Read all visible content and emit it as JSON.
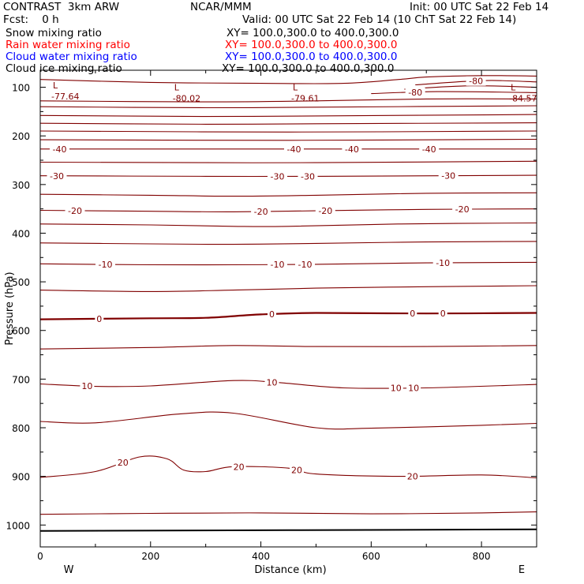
{
  "header": {
    "model": "CONTRAST  3km ARW",
    "org": "NCAR/MMM",
    "init": "Init: 00 UTC Sat 22 Feb 14",
    "fcst": "Fcst:    0 h",
    "valid": "Valid: 00 UTC Sat 22 Feb 14 (10 ChT Sat 22 Feb 14)"
  },
  "fields": [
    {
      "name": "Snow mixing ratio",
      "xy": "XY= 100.0,300.0 to 400.0,300.0",
      "color": "#000000"
    },
    {
      "name": "Rain water mixing ratio",
      "xy": "XY= 100.0,300.0 to 400.0,300.0",
      "color": "#ff0000"
    },
    {
      "name": "Cloud water mixing ratio",
      "xy": "XY= 100.0,300.0 to 400.0,300.0",
      "color": "#0000ff"
    },
    {
      "name": "Cloud ice mixing ratio",
      "xy": "XY= 100.0,300.0 to 400.0,300.0",
      "color": "#000000"
    }
  ],
  "chart_data": {
    "type": "line",
    "subtype": "vertical cross-section contour plot",
    "xlabel": "Distance (km)",
    "ylabel": "Pressure (hPa)",
    "xlim": [
      0,
      900
    ],
    "ylim": [
      1045,
      65
    ],
    "y_inverted": true,
    "x_ticks": [
      0,
      200,
      400,
      600,
      800
    ],
    "y_ticks": [
      100,
      200,
      300,
      400,
      500,
      600,
      700,
      800,
      900,
      1000
    ],
    "end_labels": {
      "left": "W",
      "right": "E"
    },
    "contour_color": "#800000",
    "ground_color": "#000000",
    "grid": false,
    "lows": [
      {
        "x": 20,
        "p": 109,
        "label": "-77.64"
      },
      {
        "x": 240,
        "p": 113,
        "label": "-80.02"
      },
      {
        "x": 455,
        "p": 113,
        "label": "-79.61"
      },
      {
        "x": 850,
        "p": 113,
        "label": "-84.57"
      }
    ],
    "contours": [
      {
        "points": [
          [
            0,
            84
          ],
          [
            200,
            90
          ],
          [
            400,
            92
          ],
          [
            550,
            92
          ],
          [
            650,
            84
          ],
          [
            700,
            79
          ],
          [
            800,
            76
          ],
          [
            900,
            77
          ]
        ]
      },
      {
        "points": [
          [
            680,
            95
          ],
          [
            770,
            88
          ],
          [
            820,
            86
          ],
          [
            900,
            89
          ]
        ],
        "labels": [
          {
            "x": 790,
            "text": "-80"
          }
        ]
      },
      {
        "points": [
          [
            660,
            104
          ],
          [
            780,
            97
          ],
          [
            900,
            100
          ]
        ]
      },
      {
        "points": [
          [
            600,
            113
          ],
          [
            720,
            109
          ],
          [
            900,
            111
          ]
        ],
        "labels": [
          {
            "x": 680,
            "text": "-80"
          }
        ]
      },
      {
        "points": [
          [
            0,
            128
          ],
          [
            300,
            130
          ],
          [
            500,
            128
          ],
          [
            700,
            124
          ],
          [
            900,
            124
          ]
        ]
      },
      {
        "points": [
          [
            0,
            140
          ],
          [
            300,
            142
          ],
          [
            500,
            141
          ],
          [
            900,
            138
          ]
        ]
      },
      {
        "points": [
          [
            0,
            158
          ],
          [
            300,
            160
          ],
          [
            500,
            159
          ],
          [
            900,
            156
          ]
        ]
      },
      {
        "points": [
          [
            0,
            174
          ],
          [
            300,
            176
          ],
          [
            500,
            175
          ],
          [
            900,
            173
          ]
        ]
      },
      {
        "points": [
          [
            0,
            190
          ],
          [
            450,
            192
          ],
          [
            900,
            190
          ]
        ]
      },
      {
        "points": [
          [
            0,
            208
          ],
          [
            450,
            209
          ],
          [
            900,
            207
          ]
        ]
      },
      {
        "points": [
          [
            0,
            227
          ],
          [
            300,
            227
          ],
          [
            500,
            227
          ],
          [
            900,
            227
          ]
        ],
        "labels": [
          {
            "x": 35,
            "text": "-40"
          },
          {
            "x": 460,
            "text": "-40"
          },
          {
            "x": 565,
            "text": "-40"
          },
          {
            "x": 705,
            "text": "-40"
          }
        ]
      },
      {
        "points": [
          [
            0,
            254
          ],
          [
            300,
            255
          ],
          [
            500,
            255
          ],
          [
            900,
            252
          ]
        ]
      },
      {
        "points": [
          [
            0,
            282
          ],
          [
            300,
            283
          ],
          [
            500,
            283
          ],
          [
            900,
            281
          ]
        ],
        "labels": [
          {
            "x": 30,
            "text": "-30"
          },
          {
            "x": 430,
            "text": "-30"
          },
          {
            "x": 485,
            "text": "-30"
          },
          {
            "x": 740,
            "text": "-30"
          }
        ]
      },
      {
        "points": [
          [
            0,
            320
          ],
          [
            200,
            322
          ],
          [
            350,
            324
          ],
          [
            500,
            322
          ],
          [
            700,
            318
          ],
          [
            900,
            317
          ]
        ]
      },
      {
        "points": [
          [
            0,
            353
          ],
          [
            200,
            355
          ],
          [
            350,
            356
          ],
          [
            500,
            354
          ],
          [
            700,
            351
          ],
          [
            900,
            350
          ]
        ],
        "labels": [
          {
            "x": 63,
            "text": "-20"
          },
          {
            "x": 400,
            "text": "-20"
          },
          {
            "x": 517,
            "text": "-20"
          },
          {
            "x": 765,
            "text": "-20"
          }
        ]
      },
      {
        "points": [
          [
            0,
            381
          ],
          [
            200,
            383
          ],
          [
            350,
            386
          ],
          [
            450,
            386
          ],
          [
            650,
            381
          ],
          [
            900,
            379
          ]
        ]
      },
      {
        "points": [
          [
            0,
            420
          ],
          [
            200,
            422
          ],
          [
            350,
            423
          ],
          [
            500,
            421
          ],
          [
            700,
            418
          ],
          [
            900,
            417
          ]
        ]
      },
      {
        "points": [
          [
            0,
            463
          ],
          [
            200,
            465
          ],
          [
            350,
            465
          ],
          [
            500,
            464
          ],
          [
            700,
            461
          ],
          [
            900,
            460
          ]
        ],
        "labels": [
          {
            "x": 118,
            "text": "-10"
          },
          {
            "x": 430,
            "text": "-10"
          },
          {
            "x": 480,
            "text": "-10"
          },
          {
            "x": 730,
            "text": "-10"
          }
        ]
      },
      {
        "points": [
          [
            0,
            517
          ],
          [
            200,
            520
          ],
          [
            350,
            517
          ],
          [
            500,
            513
          ],
          [
            700,
            510
          ],
          [
            900,
            508
          ]
        ]
      },
      {
        "points": [
          [
            0,
            577
          ],
          [
            200,
            575
          ],
          [
            300,
            574
          ],
          [
            400,
            567
          ],
          [
            500,
            564
          ],
          [
            700,
            565
          ],
          [
            900,
            564
          ]
        ],
        "labels": [
          {
            "x": 107,
            "text": "0"
          },
          {
            "x": 420,
            "text": "0"
          },
          {
            "x": 675,
            "text": "0"
          },
          {
            "x": 730,
            "text": "0"
          }
        ],
        "bold": true
      },
      {
        "points": [
          [
            0,
            638
          ],
          [
            200,
            635
          ],
          [
            350,
            631
          ],
          [
            500,
            633
          ],
          [
            700,
            633
          ],
          [
            900,
            631
          ]
        ]
      },
      {
        "points": [
          [
            0,
            710
          ],
          [
            100,
            715
          ],
          [
            200,
            714
          ],
          [
            350,
            703
          ],
          [
            430,
            707
          ],
          [
            550,
            718
          ],
          [
            700,
            718
          ],
          [
            900,
            711
          ]
        ],
        "labels": [
          {
            "x": 85,
            "text": "10"
          },
          {
            "x": 420,
            "text": "10"
          },
          {
            "x": 645,
            "text": "10"
          },
          {
            "x": 677,
            "text": "10"
          }
        ]
      },
      {
        "points": [
          [
            0,
            787
          ],
          [
            100,
            790
          ],
          [
            250,
            772
          ],
          [
            350,
            770
          ],
          [
            500,
            800
          ],
          [
            600,
            801
          ],
          [
            800,
            795
          ],
          [
            900,
            791
          ]
        ]
      },
      {
        "points": [
          [
            0,
            902
          ],
          [
            100,
            890
          ],
          [
            180,
            860
          ],
          [
            230,
            864
          ],
          [
            260,
            887
          ],
          [
            300,
            890
          ],
          [
            350,
            880
          ],
          [
            450,
            883
          ],
          [
            500,
            895
          ],
          [
            650,
            900
          ],
          [
            800,
            897
          ],
          [
            900,
            903
          ]
        ],
        "labels": [
          {
            "x": 150,
            "text": "20"
          },
          {
            "x": 360,
            "text": "20"
          },
          {
            "x": 465,
            "text": "20"
          },
          {
            "x": 675,
            "text": "20"
          }
        ]
      },
      {
        "points": [
          [
            0,
            978
          ],
          [
            200,
            976
          ],
          [
            400,
            975
          ],
          [
            600,
            977
          ],
          [
            800,
            975
          ],
          [
            900,
            973
          ]
        ]
      }
    ],
    "ground": {
      "points": [
        [
          0,
          1012
        ],
        [
          900,
          1009
        ]
      ]
    }
  }
}
